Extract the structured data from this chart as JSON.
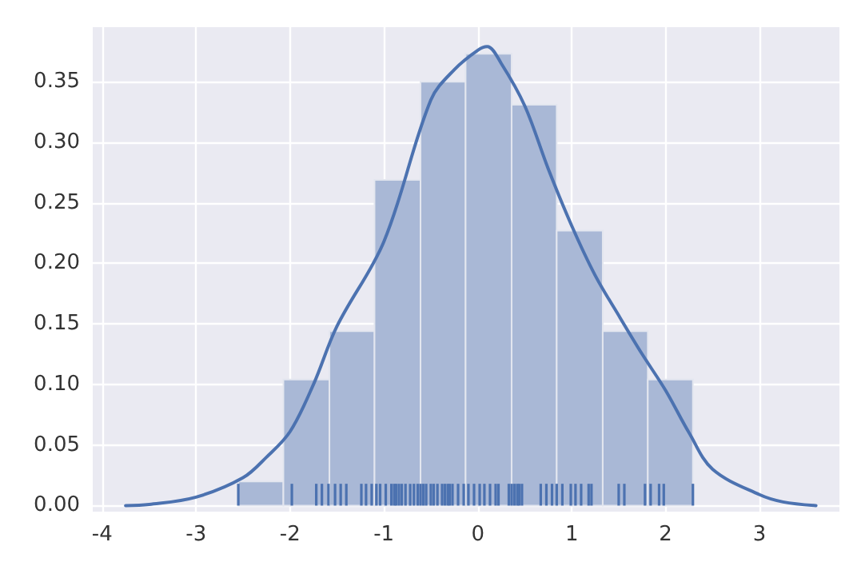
{
  "chart_data": {
    "type": "histogram",
    "bins": [
      -2.55,
      -2.07,
      -1.58,
      -1.1,
      -0.61,
      -0.13,
      0.36,
      0.84,
      1.33,
      1.81,
      2.29
    ],
    "series": [
      {
        "color": "#a9b8d6",
        "values": [
          0.02,
          0.104,
          0.144,
          0.269,
          0.35,
          0.373,
          0.331,
          0.227,
          0.144,
          0.104
        ]
      },
      {
        "type": "line",
        "color": "#4c72b0",
        "x": [
          -3.75,
          -3.5,
          -3,
          -2.5,
          -2.25,
          -2,
          -1.75,
          -1.5,
          -1,
          -0.5,
          -0.25,
          0,
          0.1,
          0.25,
          0.5,
          0.75,
          1,
          1.25,
          1.5,
          1.75,
          2,
          2.25,
          2.5,
          3,
          3.25,
          3.6
        ],
        "values": [
          0,
          0.001,
          0.007,
          0.023,
          0.04,
          0.061,
          0.1,
          0.148,
          0.218,
          0.335,
          0.36,
          0.376,
          0.379,
          0.365,
          0.33,
          0.278,
          0.231,
          0.19,
          0.157,
          0.125,
          0.095,
          0.06,
          0.03,
          0.009,
          0.003,
          0
        ]
      },
      {
        "type": "bar",
        "color": "#4c72b0",
        "x": [
          -2.55,
          -1.98,
          -1.72,
          -1.66,
          -1.59,
          -1.52,
          -1.46,
          -1.4,
          -1.24,
          -1.19,
          -1.13,
          -1.08,
          -1.04,
          -0.98,
          -0.92,
          -0.89,
          -0.87,
          -0.84,
          -0.81,
          -0.77,
          -0.72,
          -0.68,
          -0.64,
          -0.61,
          -0.58,
          -0.55,
          -0.5,
          -0.47,
          -0.43,
          -0.38,
          -0.35,
          -0.32,
          -0.3,
          -0.27,
          -0.21,
          -0.15,
          -0.1,
          -0.04,
          0.02,
          0.07,
          0.13,
          0.19,
          0.22,
          0.33,
          0.36,
          0.39,
          0.42,
          0.44,
          0.47,
          0.67,
          0.73,
          0.79,
          0.84,
          0.9,
          0.99,
          1.04,
          1.1,
          1.18,
          1.21,
          1.5,
          1.56,
          1.78,
          1.84,
          1.93,
          1.98,
          2.29
        ],
        "values": [
          0.018,
          0.018,
          0.018,
          0.018,
          0.018,
          0.018,
          0.018,
          0.018,
          0.018,
          0.018,
          0.018,
          0.018,
          0.018,
          0.018,
          0.018,
          0.018,
          0.018,
          0.018,
          0.018,
          0.018,
          0.018,
          0.018,
          0.018,
          0.018,
          0.018,
          0.018,
          0.018,
          0.018,
          0.018,
          0.018,
          0.018,
          0.018,
          0.018,
          0.018,
          0.018,
          0.018,
          0.018,
          0.018,
          0.018,
          0.018,
          0.018,
          0.018,
          0.018,
          0.018,
          0.018,
          0.018,
          0.018,
          0.018,
          0.018,
          0.018,
          0.018,
          0.018,
          0.018,
          0.018,
          0.018,
          0.018,
          0.018,
          0.018,
          0.018,
          0.018,
          0.018,
          0.018,
          0.018,
          0.018,
          0.018,
          0.018
        ]
      }
    ],
    "xlim": [
      -4.1,
      3.85
    ],
    "xticks": [
      -4,
      -3,
      -2,
      -1,
      0,
      1,
      2,
      3
    ],
    "ylim": [
      -0.005,
      0.395
    ],
    "yticks": [
      {
        "value": 0,
        "label": "0.00"
      },
      0.05,
      {
        "value": 0.1,
        "label": "0.10"
      },
      0.15,
      {
        "value": 0.2,
        "label": "0.20"
      },
      0.25,
      {
        "value": 0.3,
        "label": "0.30"
      },
      0.35
    ],
    "grid": true,
    "line_style": "solid"
  }
}
